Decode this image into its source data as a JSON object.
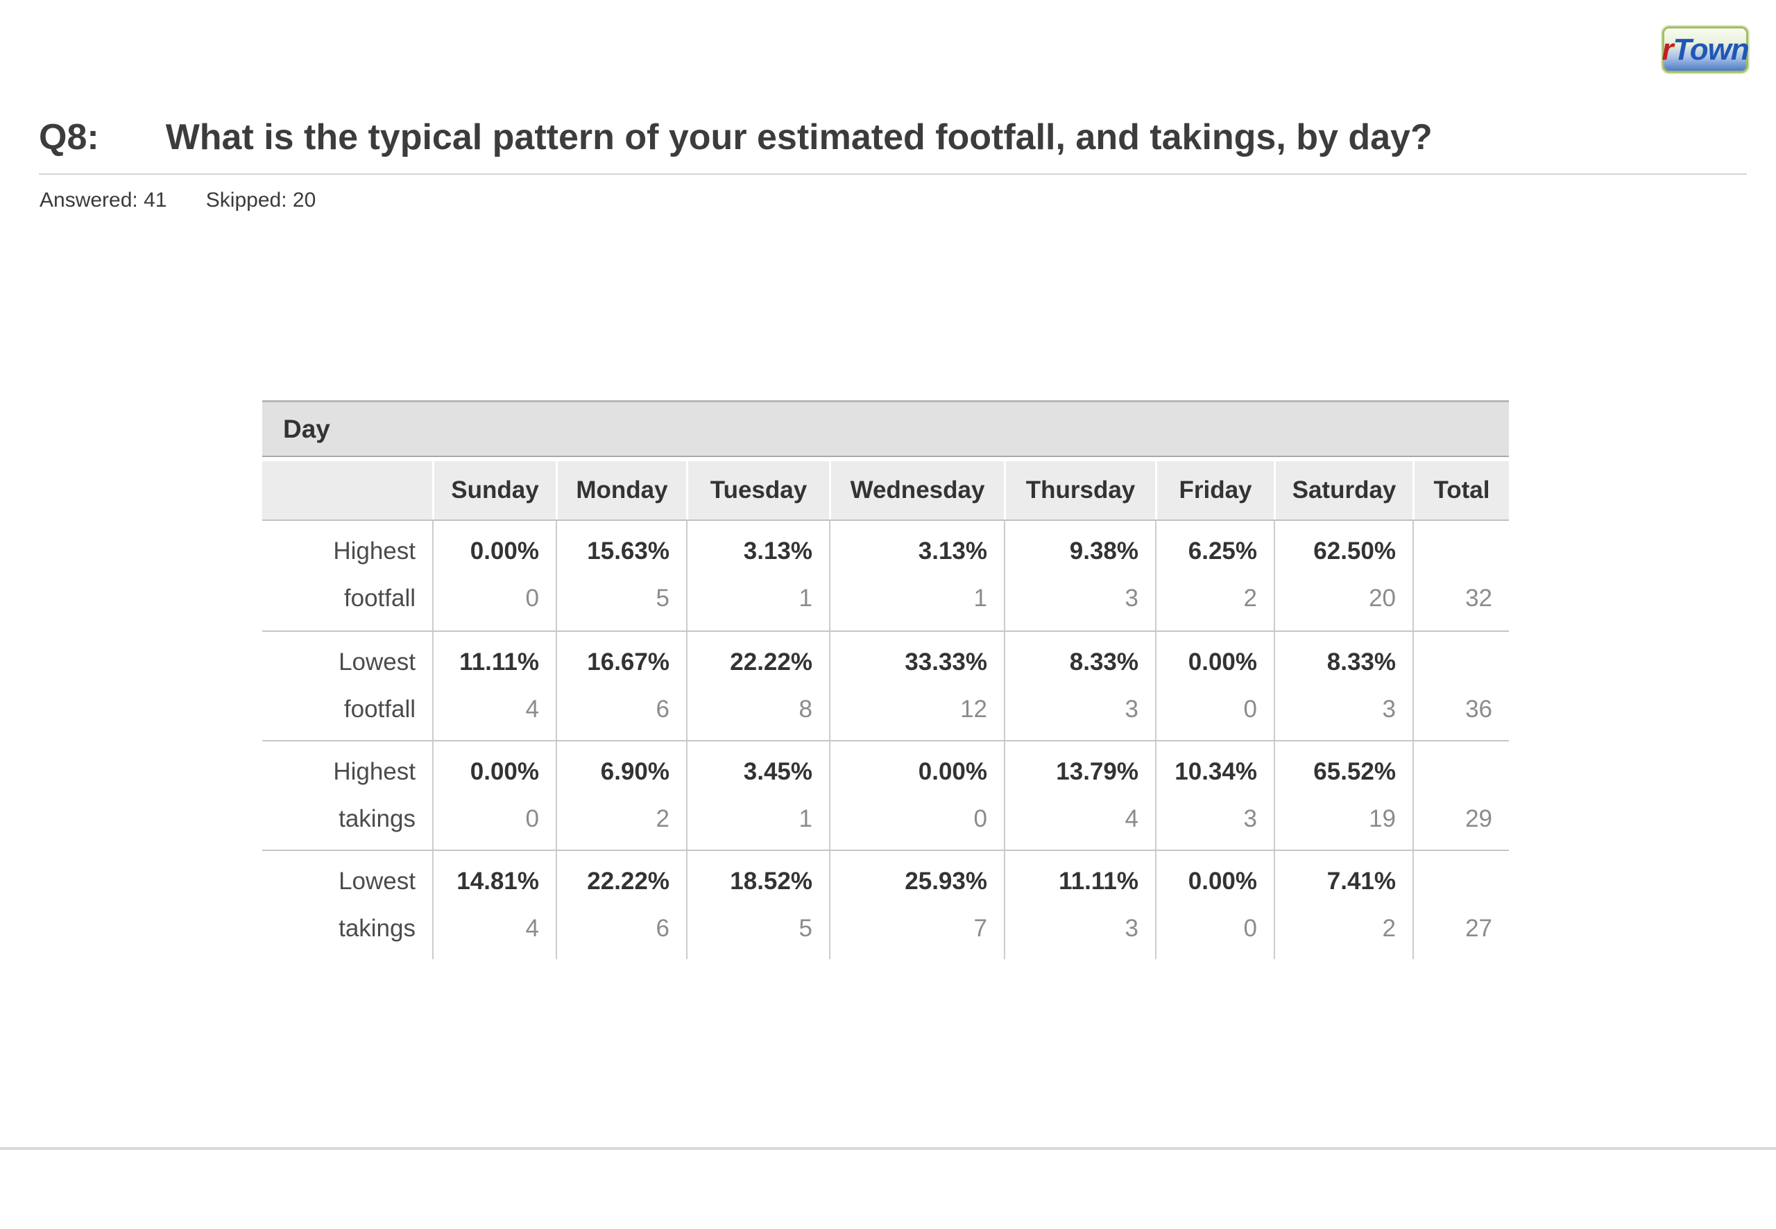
{
  "logo": {
    "part1": "r",
    "part2": "Town"
  },
  "header": {
    "question_label": "Q8:",
    "question_text": "What is the typical pattern of your estimated footfall, and takings, by day?",
    "answered": "Answered: 41",
    "skipped": "Skipped: 20"
  },
  "table": {
    "group_header": "Day",
    "columns": [
      "Sunday",
      "Monday",
      "Tuesday",
      "Wednesday",
      "Thursday",
      "Friday",
      "Saturday",
      "Total"
    ],
    "rows": [
      {
        "label_line1": "Highest",
        "label_line2": "footfall",
        "cells": [
          {
            "pct": "0.00%",
            "count": "0"
          },
          {
            "pct": "15.63%",
            "count": "5"
          },
          {
            "pct": "3.13%",
            "count": "1"
          },
          {
            "pct": "3.13%",
            "count": "1"
          },
          {
            "pct": "9.38%",
            "count": "3"
          },
          {
            "pct": "6.25%",
            "count": "2"
          },
          {
            "pct": "62.50%",
            "count": "20"
          }
        ],
        "total": "32"
      },
      {
        "label_line1": "Lowest",
        "label_line2": "footfall",
        "cells": [
          {
            "pct": "11.11%",
            "count": "4"
          },
          {
            "pct": "16.67%",
            "count": "6"
          },
          {
            "pct": "22.22%",
            "count": "8"
          },
          {
            "pct": "33.33%",
            "count": "12"
          },
          {
            "pct": "8.33%",
            "count": "3"
          },
          {
            "pct": "0.00%",
            "count": "0"
          },
          {
            "pct": "8.33%",
            "count": "3"
          }
        ],
        "total": "36"
      },
      {
        "label_line1": "Highest",
        "label_line2": "takings",
        "cells": [
          {
            "pct": "0.00%",
            "count": "0"
          },
          {
            "pct": "6.90%",
            "count": "2"
          },
          {
            "pct": "3.45%",
            "count": "1"
          },
          {
            "pct": "0.00%",
            "count": "0"
          },
          {
            "pct": "13.79%",
            "count": "4"
          },
          {
            "pct": "10.34%",
            "count": "3"
          },
          {
            "pct": "65.52%",
            "count": "19"
          }
        ],
        "total": "29"
      },
      {
        "label_line1": "Lowest",
        "label_line2": "takings",
        "cells": [
          {
            "pct": "14.81%",
            "count": "4"
          },
          {
            "pct": "22.22%",
            "count": "6"
          },
          {
            "pct": "18.52%",
            "count": "5"
          },
          {
            "pct": "25.93%",
            "count": "7"
          },
          {
            "pct": "11.11%",
            "count": "3"
          },
          {
            "pct": "0.00%",
            "count": "0"
          },
          {
            "pct": "7.41%",
            "count": "2"
          }
        ],
        "total": "27"
      }
    ]
  },
  "colors": {
    "accent_red": "#c41e1e",
    "accent_blue": "#1f57b5",
    "band_gray": "#e1e1e1",
    "header_gray": "#ececec"
  }
}
